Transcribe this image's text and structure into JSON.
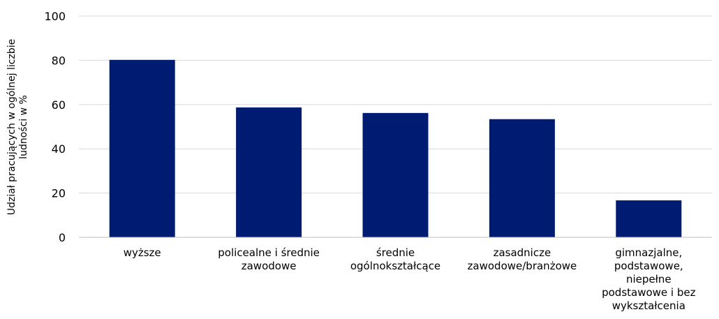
{
  "chart_data": {
    "type": "bar",
    "categories": [
      [
        "wyższe"
      ],
      [
        "policealne i średnie",
        "zawodowe"
      ],
      [
        "średnie",
        "ogólnokształcące"
      ],
      [
        "zasadnicze",
        "zawodowe/branżowe"
      ],
      [
        "gimnazjalne,",
        "podstawowe,",
        "niepełne",
        "podstawowe i bez",
        "wykształcenia"
      ]
    ],
    "values": [
      80.2,
      58.7,
      56.2,
      53.4,
      16.7
    ],
    "ylabel": [
      "Udział pracujących w ogólnej liczbie",
      "ludności w %"
    ],
    "ylim": [
      0,
      100
    ],
    "yticks": [
      0,
      20,
      40,
      60,
      80,
      100
    ],
    "grid": true,
    "bar_color": "#001C72",
    "grid_color": "#D9D9D9",
    "axis_color": "#BFBFBF"
  }
}
